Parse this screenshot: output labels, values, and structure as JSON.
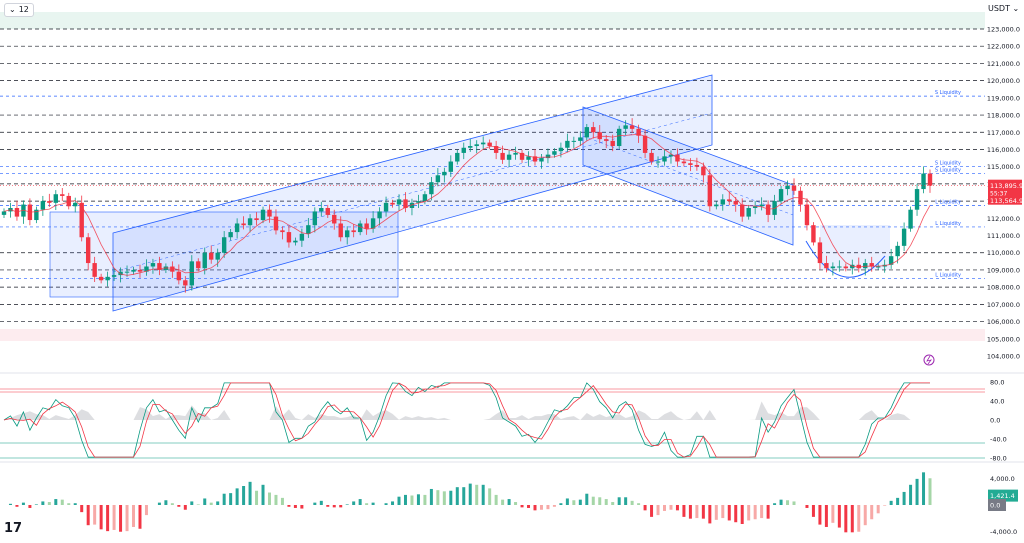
{
  "toolbar": {
    "interval_label": "12",
    "currency_label": "USDT",
    "chevron_icon": "chevron-down-icon"
  },
  "logo_text": "17",
  "colors": {
    "up": "#089981",
    "down": "#f23645",
    "channel": "#2962ff"
  },
  "chart_data": [
    {
      "type": "candlestick",
      "y_range": [
        104000,
        124000
      ],
      "price_ticks": [
        "123,000.0",
        "122,000.0",
        "121,000.0",
        "120,000.0",
        "119,000.0",
        "118,000.0",
        "117,000.0",
        "116,000.0",
        "115,000.0",
        "114,000.0",
        "113,000.0",
        "112,000.0",
        "111,000.0",
        "110,000.0",
        "109,000.0",
        "108,000.0",
        "107,000.0",
        "106,000.0",
        "105,000.0",
        "104,000.0"
      ],
      "dashed_levels": [
        123000,
        122000,
        121000,
        120000,
        118000,
        117000,
        116000,
        114000,
        113000,
        110000,
        109000,
        108000,
        107000,
        106000
      ],
      "liquidity_levels": [
        {
          "label": "S Liquidity",
          "value": 119100
        },
        {
          "label": "S Liquidity",
          "value": 115000
        },
        {
          "label": "S Liquidity",
          "value": 114600
        },
        {
          "label": "L Liquidity",
          "value": 112750
        },
        {
          "label": "L Liquidity",
          "value": 111500
        },
        {
          "label": "L Liquidity",
          "value": 108500
        }
      ],
      "last_price": "113,895.9",
      "countdown": "55:37",
      "second_price": "113,564.9",
      "close_series": [
        112400,
        112600,
        112100,
        112800,
        111900,
        112500,
        113000,
        112900,
        113400,
        113300,
        112700,
        112900,
        110900,
        109400,
        108600,
        108400,
        108600,
        108700,
        108900,
        108900,
        109000,
        108900,
        109200,
        109400,
        109000,
        109200,
        108900,
        108400,
        108100,
        109500,
        109100,
        110000,
        109600,
        110000,
        110900,
        111200,
        111700,
        111600,
        112000,
        111900,
        112500,
        112100,
        111300,
        111200,
        110600,
        110700,
        111100,
        111600,
        112400,
        112600,
        112200,
        111700,
        110900,
        111300,
        111200,
        111700,
        111400,
        112000,
        112400,
        112900,
        112800,
        113100,
        112600,
        112900,
        113000,
        113400,
        114100,
        114500,
        114700,
        115300,
        115800,
        116100,
        116200,
        116300,
        116400,
        116200,
        115800,
        115400,
        115700,
        115800,
        115400,
        115600,
        115300,
        115500,
        115700,
        115900,
        116100,
        116500,
        116500,
        116700,
        117300,
        117000,
        116600,
        116500,
        116200,
        117200,
        117400,
        117200,
        116800,
        115800,
        115300,
        115300,
        115600,
        115700,
        115300,
        115200,
        115100,
        115000,
        114500,
        112700,
        112800,
        113100,
        113000,
        112800,
        112100,
        112600,
        112700,
        112800,
        112200,
        113000,
        113700,
        113900,
        113600,
        112800,
        111600,
        110600,
        109400,
        109100,
        109200,
        109200,
        109100,
        109300,
        109100,
        109400,
        109200,
        109200,
        109300,
        109800,
        110400,
        111400,
        112500,
        113700,
        114600,
        113900
      ]
    },
    {
      "type": "line",
      "name": "",
      "y_range": [
        -100,
        100
      ],
      "ticks": [
        "80.0",
        "40.0",
        "0.0",
        "-40.0",
        "-80.0"
      ],
      "levels": [
        80,
        -80
      ],
      "badge": ""
    },
    {
      "type": "bar",
      "name": "",
      "y_range": [
        -5000,
        5000
      ],
      "ticks": [
        "4,000.0",
        "0.0",
        "-4,000.0"
      ],
      "badge": "1,421.4",
      "zero_badge": "0.0"
    }
  ]
}
